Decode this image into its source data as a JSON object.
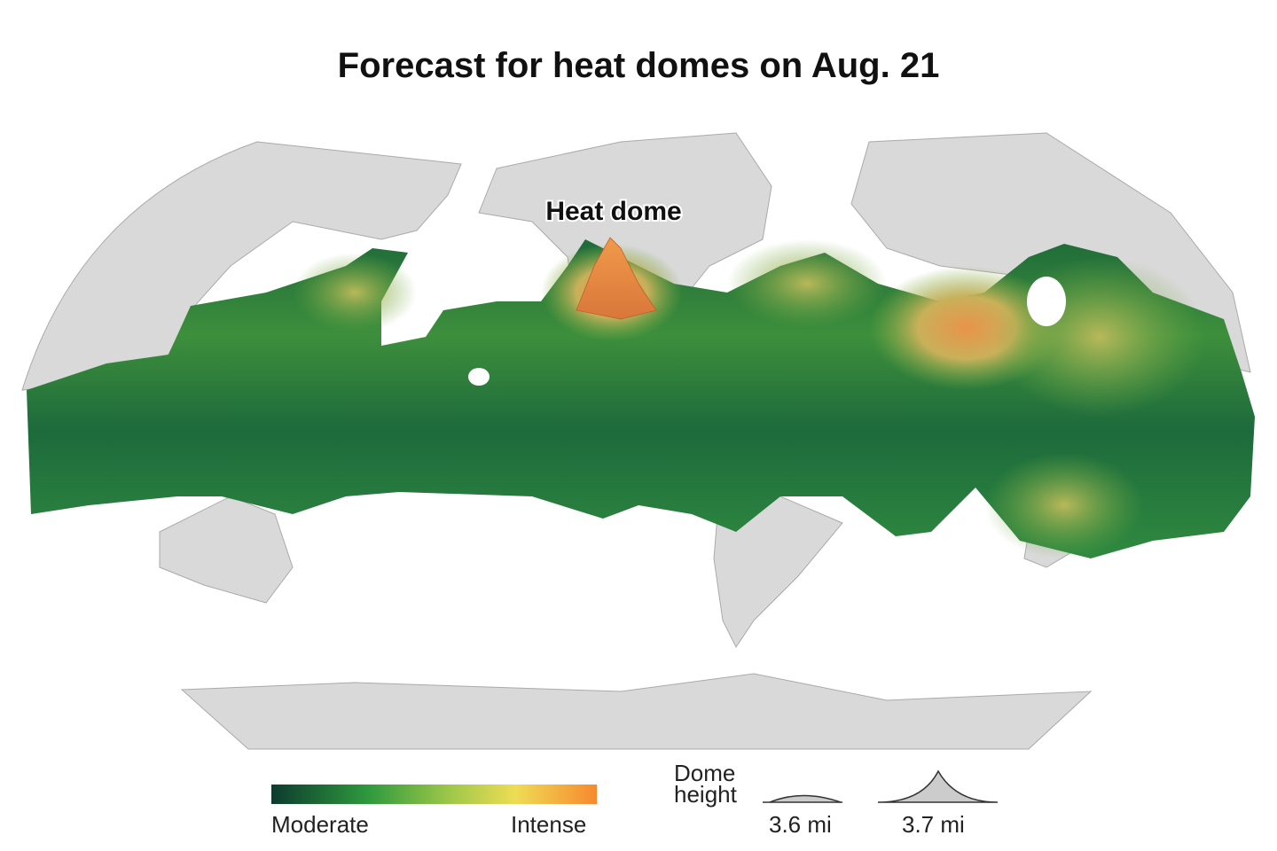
{
  "header": {
    "title": "Forecast for heat domes on Aug. 21"
  },
  "map": {
    "annotation": "Heat dome"
  },
  "legend": {
    "color_scale": {
      "low": "Moderate",
      "high": "Intense"
    },
    "dome_height": {
      "title": "Dome height",
      "sizes": [
        "3.6 mi",
        "3.7 mi"
      ]
    }
  }
}
